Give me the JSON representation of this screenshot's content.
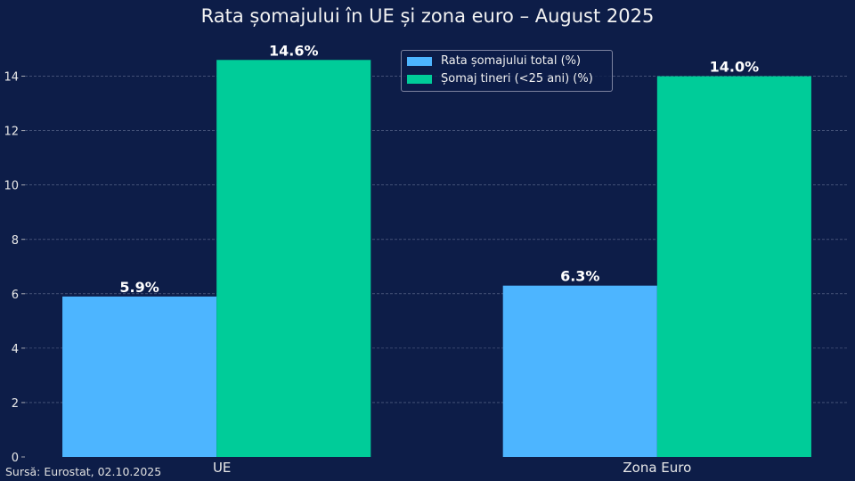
{
  "chart_data": {
    "type": "bar",
    "title": "Rata șomajului în UE și zona euro – August 2025",
    "categories": [
      "UE",
      "Zona Euro"
    ],
    "series": [
      {
        "name": "Rata șomajului total (%)",
        "values": [
          5.9,
          6.3
        ],
        "labels": [
          "5.9%",
          "6.3%"
        ],
        "color": "#4db5ff"
      },
      {
        "name": "Șomaj tineri (<25 ani) (%)",
        "values": [
          14.6,
          14.0
        ],
        "labels": [
          "14.6%",
          "14.0%"
        ],
        "color": "#00cc99"
      }
    ],
    "yticks": [
      0,
      2,
      4,
      6,
      8,
      10,
      12,
      14
    ],
    "ylim": [
      0,
      15.33
    ],
    "xlabel": "",
    "ylabel": "",
    "grid": "horizontal dashed",
    "legend": "top-right",
    "background": "#0d1d48"
  },
  "source": "Sursă: Eurostat, 02.10.2025"
}
